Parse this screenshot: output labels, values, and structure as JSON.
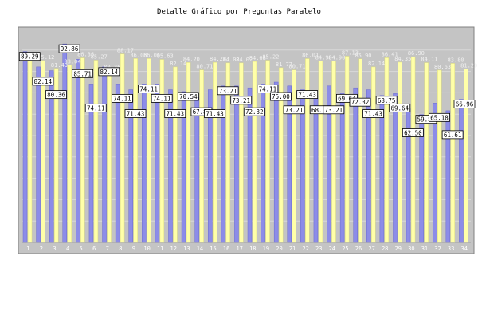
{
  "chart_data": {
    "type": "bar",
    "title": "Detalle Gráfico por Preguntas Paralelo",
    "xlabel": "",
    "ylabel": "",
    "ylim": [
      0,
      100
    ],
    "yticks": [
      10,
      20,
      30,
      40,
      50,
      60,
      70,
      80,
      90
    ],
    "grid": true,
    "legend": "none",
    "categories": [
      "1",
      "2",
      "3",
      "4",
      "5",
      "6",
      "7",
      "8",
      "9",
      "10",
      "11",
      "12",
      "13",
      "14",
      "15",
      "16",
      "17",
      "18",
      "19",
      "20",
      "21",
      "22",
      "23",
      "24",
      "25",
      "26",
      "27",
      "28",
      "29",
      "30",
      "31",
      "32",
      "33",
      "34"
    ],
    "series": [
      {
        "color": "#8c8ce8",
        "label_style": "boxed",
        "values": [
          89.29,
          82.14,
          80.36,
          92.86,
          85.71,
          74.11,
          82.14,
          74.11,
          71.43,
          74.11,
          74.11,
          71.43,
          70.54,
          67.86,
          71.43,
          73.21,
          73.21,
          72.32,
          74.11,
          75.0,
          73.21,
          71.43,
          68.75,
          73.21,
          69.64,
          72.32,
          71.43,
          68.75,
          69.64,
          62.5,
          59.82,
          65.18,
          61.61,
          66.96
        ]
      },
      {
        "color": "#ffffa8",
        "label_style": "plain",
        "values": [
          85.71,
          85.12,
          81.43,
          83.04,
          86.36,
          85.27,
          80.36,
          88.17,
          86.06,
          86.06,
          85.63,
          82.14,
          84.2,
          80.71,
          84.28,
          84.02,
          84.02,
          84.68,
          85.22,
          81.77,
          80.71,
          86.01,
          84.9,
          84.9,
          87.13,
          85.9,
          82.14,
          86.41,
          84.35,
          86.9,
          84.11,
          80.63,
          83.8,
          81.2
        ]
      }
    ]
  }
}
